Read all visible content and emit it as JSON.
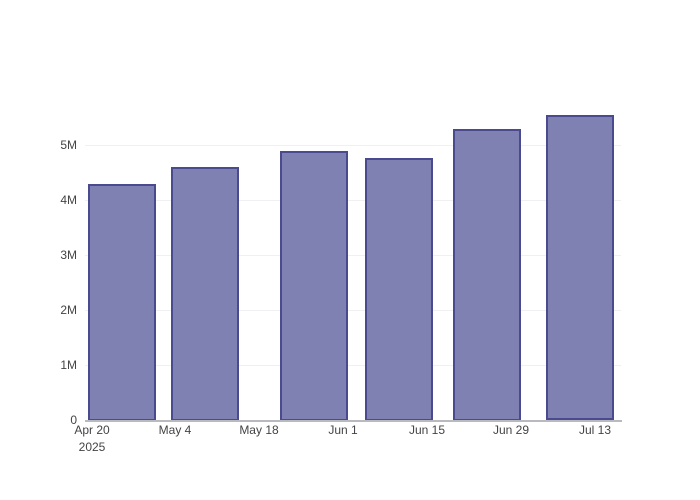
{
  "chart_data": {
    "type": "bar",
    "title": "",
    "xlabel": "",
    "ylabel": "",
    "legend": false,
    "grid": true,
    "x_estimated_dates": [
      "2025-04-25",
      "2025-05-09",
      "2025-05-27",
      "2025-06-10",
      "2025-06-25",
      "2025-07-10"
    ],
    "values": [
      4290000,
      4600000,
      4890000,
      4760000,
      5290000,
      5530000
    ],
    "x_ticks": [
      {
        "label": "Apr 20",
        "sublabel": "2025",
        "day_offset": 0
      },
      {
        "label": "May 4",
        "sublabel": "",
        "day_offset": 14
      },
      {
        "label": "May 18",
        "sublabel": "",
        "day_offset": 28
      },
      {
        "label": "Jun 1",
        "sublabel": "",
        "day_offset": 42
      },
      {
        "label": "Jun 15",
        "sublabel": "",
        "day_offset": 56
      },
      {
        "label": "Jun 29",
        "sublabel": "",
        "day_offset": 70
      },
      {
        "label": "Jul 13",
        "sublabel": "",
        "day_offset": 84
      }
    ],
    "bar_day_offsets": [
      5.1,
      19.0,
      37.1,
      51.4,
      66.1,
      81.5
    ],
    "y_ticks": [
      {
        "label": "0",
        "value": 0
      },
      {
        "label": "1M",
        "value": 1000000
      },
      {
        "label": "2M",
        "value": 2000000
      },
      {
        "label": "3M",
        "value": 3000000
      },
      {
        "label": "4M",
        "value": 4000000
      },
      {
        "label": "5M",
        "value": 5000000
      }
    ],
    "ylim": [
      0,
      5600000
    ],
    "colors": {
      "bar_fill": "#8081b3",
      "bar_border": "#4a4a8f",
      "grid": "#f0f0f2",
      "axis_line": "#b9b9c0",
      "tick_text": "#444444",
      "background": "#ffffff"
    }
  }
}
